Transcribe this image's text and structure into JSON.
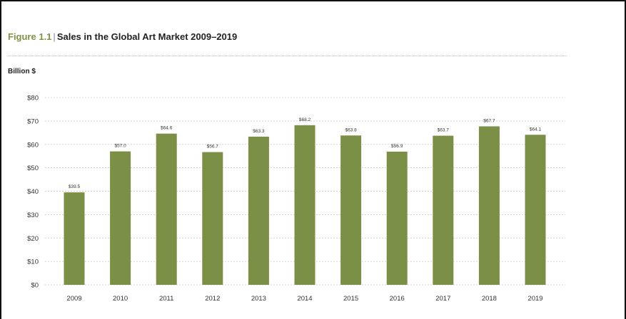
{
  "figure": {
    "label": "Figure 1.1",
    "separator": "|",
    "title": "Sales in the Global Art Market 2009–2019",
    "unit_label": "Billion $"
  },
  "colors": {
    "bar": "#7b8f46",
    "figure_label": "#7d9345",
    "grid": "#c8c8c8"
  },
  "chart_data": {
    "type": "bar",
    "title": "Sales in the Global Art Market 2009–2019",
    "ylabel": "Billion $",
    "xlabel": "",
    "categories": [
      "2009",
      "2010",
      "2011",
      "2012",
      "2013",
      "2014",
      "2015",
      "2016",
      "2017",
      "2018",
      "2019"
    ],
    "values": [
      39.5,
      57.0,
      64.6,
      56.7,
      63.3,
      68.2,
      63.8,
      56.9,
      63.7,
      67.7,
      64.1
    ],
    "value_labels": [
      "$39.5",
      "$57.0",
      "$64.6",
      "$56.7",
      "$63.3",
      "$68.2",
      "$63.8",
      "$56.9",
      "$63.7",
      "$67.7",
      "$64.1"
    ],
    "ylim": [
      0,
      80
    ],
    "yticks": [
      0,
      10,
      20,
      30,
      40,
      50,
      60,
      70,
      80
    ],
    "ytick_labels": [
      "$0",
      "$10",
      "$20",
      "$30",
      "$40",
      "$50",
      "$60",
      "$70",
      "$80"
    ],
    "grid": true,
    "legend": "none"
  }
}
